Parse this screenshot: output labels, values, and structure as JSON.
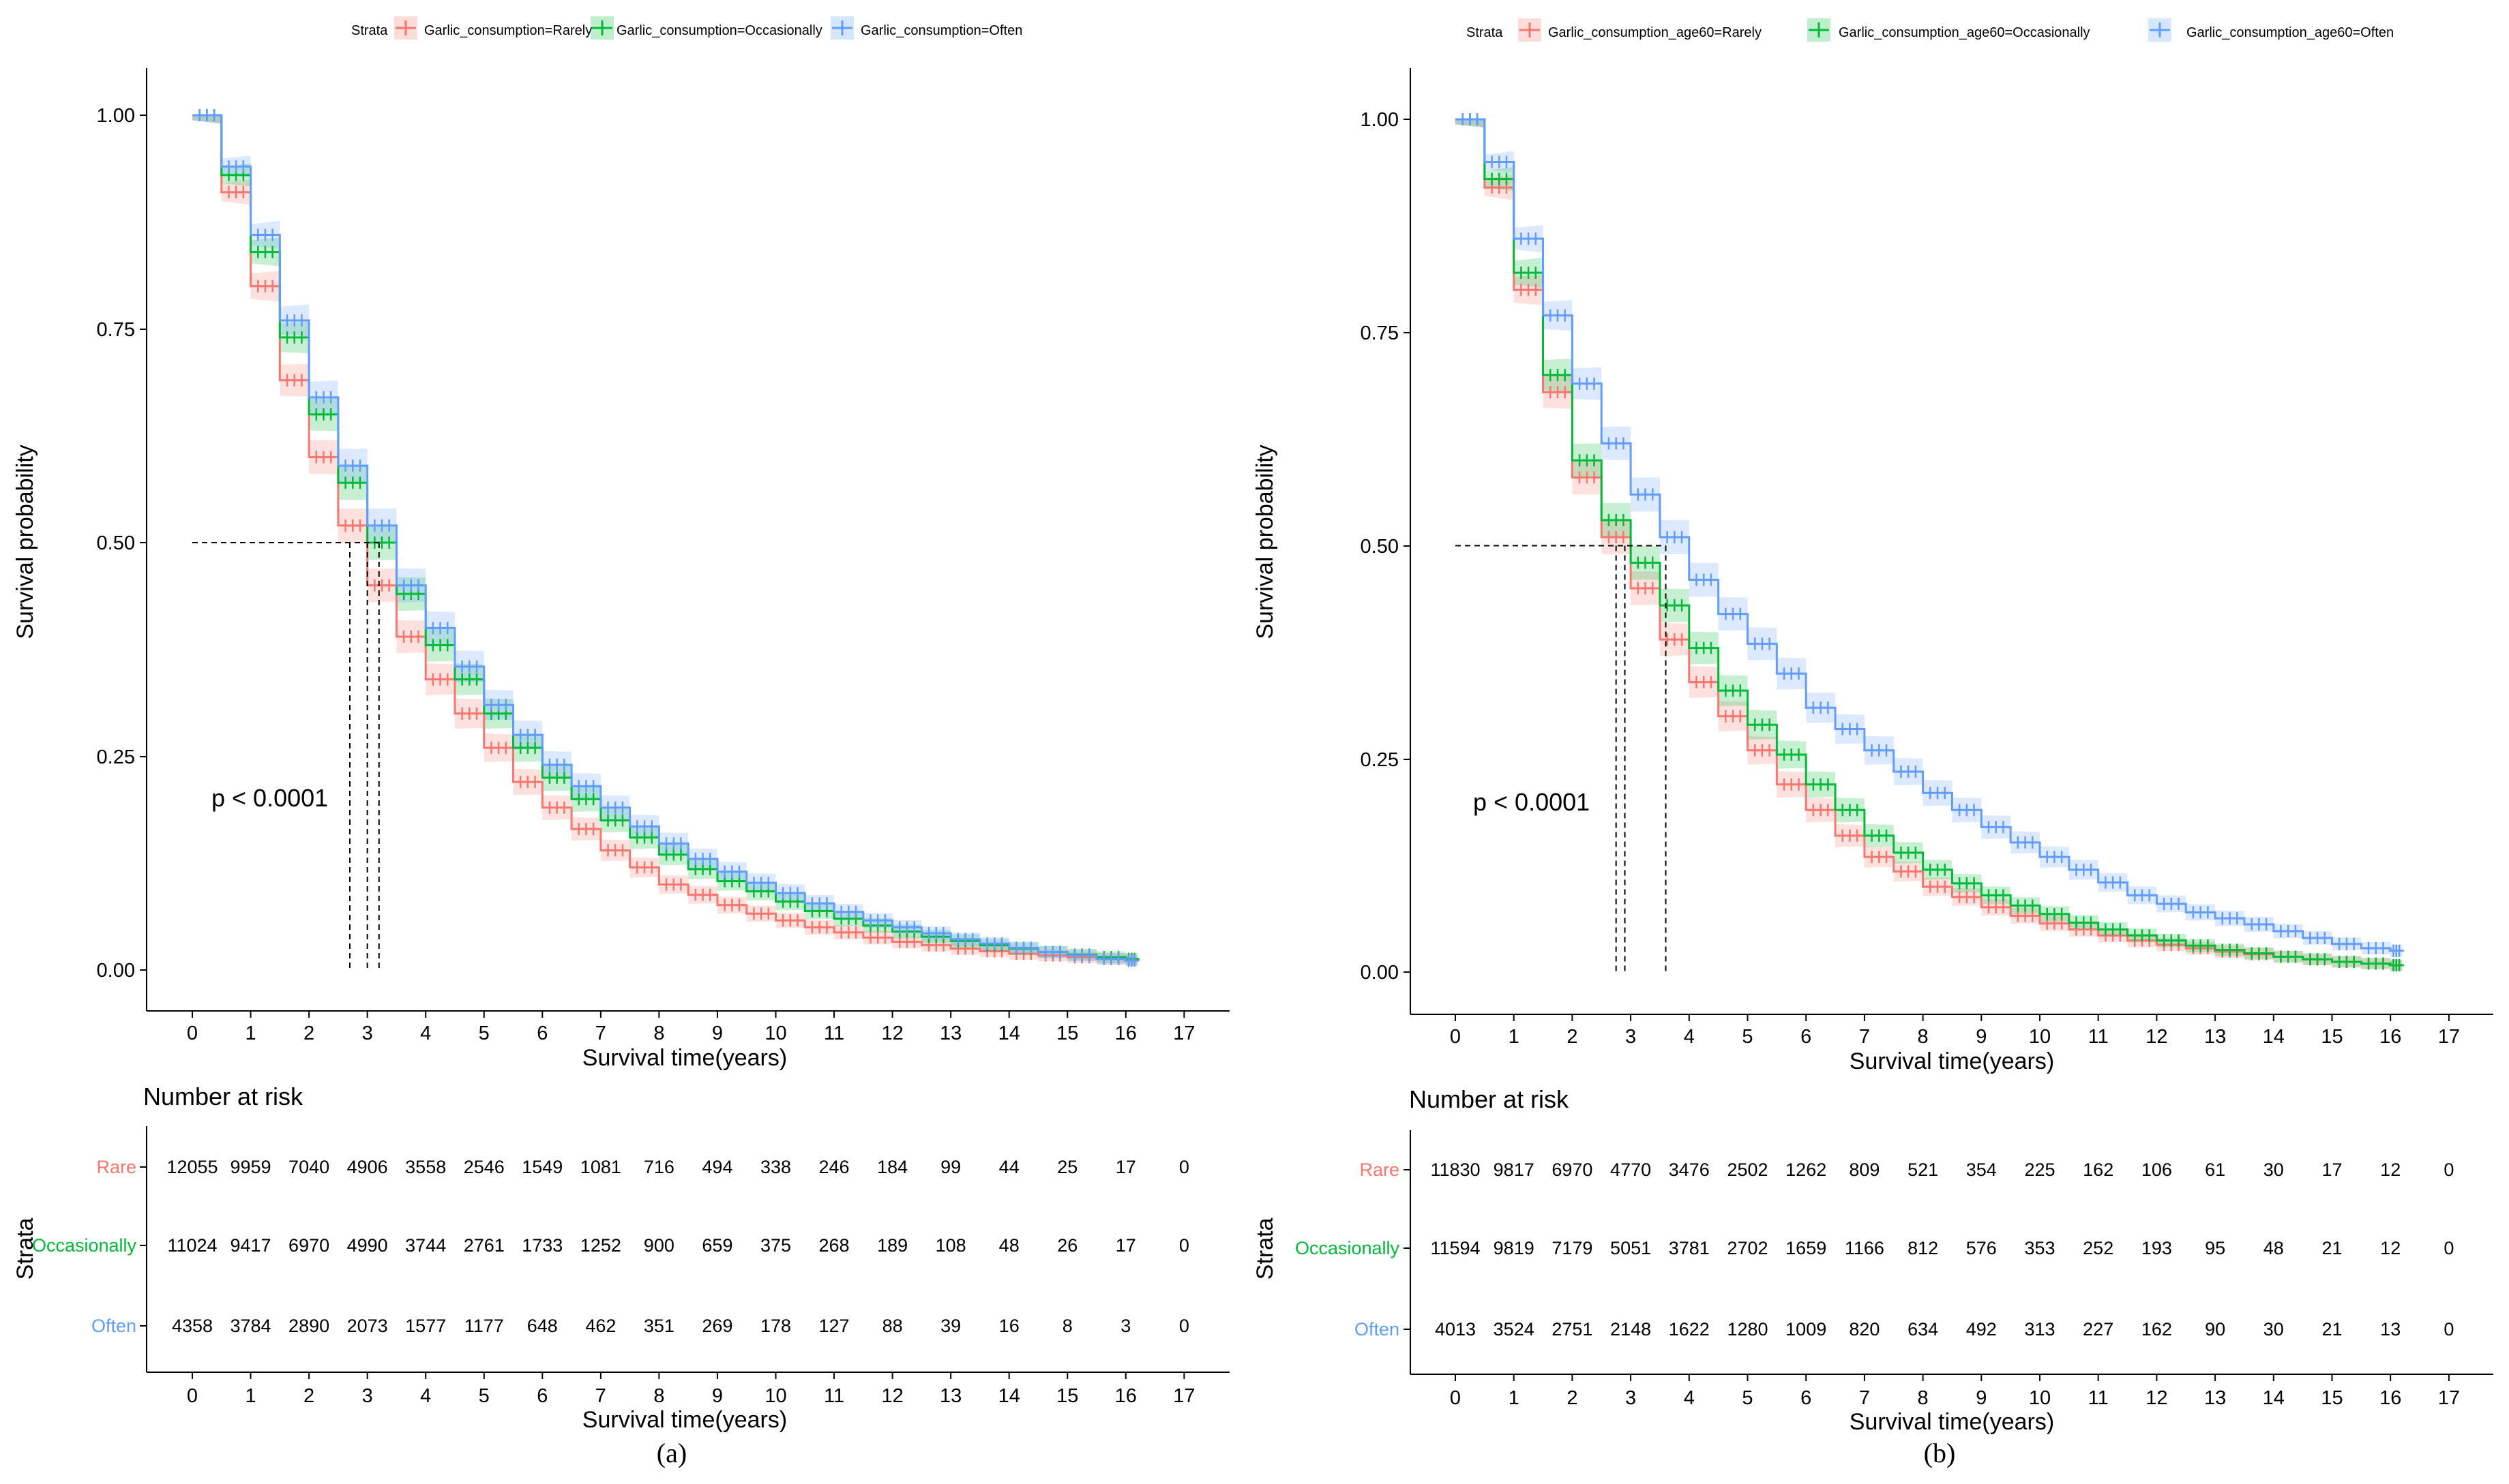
{
  "figure": {
    "panels": [
      {
        "panel_label": "(a)",
        "legend_title": "Strata",
        "y_axis_title": "Survival probability",
        "x_axis_title": "Survival time(years)",
        "p_value": "p < 0.0001",
        "risk_table_title": "Number at risk",
        "risk_table_y_title": "Strata",
        "risk_table_x_title": "Survival time(years)",
        "y_tick_labels": [
          "0.00",
          "0.25",
          "0.50",
          "0.75",
          "1.00"
        ],
        "x_tick_labels": [
          "0",
          "1",
          "2",
          "3",
          "4",
          "5",
          "6",
          "7",
          "8",
          "9",
          "10",
          "11",
          "12",
          "13",
          "14",
          "15",
          "16",
          "17"
        ],
        "legend_entries": [
          "Garlic_consumption=Rarely",
          "Garlic_consumption=Occasionally",
          "Garlic_consumption=Often"
        ],
        "risk_rows": [
          {
            "label": "Rare",
            "color": "#F8766D",
            "values": [
              "12055",
              "9959",
              "7040",
              "4906",
              "3558",
              "2546",
              "1549",
              "1081",
              "716",
              "494",
              "338",
              "246",
              "184",
              "99",
              "44",
              "25",
              "17",
              "0"
            ]
          },
          {
            "label": "Occasionally",
            "color": "#00BA38",
            "values": [
              "11024",
              "9417",
              "6970",
              "4990",
              "3744",
              "2761",
              "1733",
              "1252",
              "900",
              "659",
              "375",
              "268",
              "189",
              "108",
              "48",
              "26",
              "17",
              "0"
            ]
          },
          {
            "label": "Often",
            "color": "#619CFF",
            "values": [
              "4358",
              "3784",
              "2890",
              "2073",
              "1577",
              "1177",
              "648",
              "462",
              "351",
              "269",
              "178",
              "127",
              "88",
              "39",
              "16",
              "8",
              "3",
              "0"
            ]
          }
        ]
      },
      {
        "panel_label": "(b)",
        "legend_title": "Strata",
        "y_axis_title": "Survival probability",
        "x_axis_title": "Survival time(years)",
        "p_value": "p < 0.0001",
        "risk_table_title": "Number at risk",
        "risk_table_y_title": "Strata",
        "risk_table_x_title": "Survival time(years)",
        "y_tick_labels": [
          "0.00",
          "0.25",
          "0.50",
          "0.75",
          "1.00"
        ],
        "x_tick_labels": [
          "0",
          "1",
          "2",
          "3",
          "4",
          "5",
          "6",
          "7",
          "8",
          "9",
          "10",
          "11",
          "12",
          "13",
          "14",
          "15",
          "16",
          "17"
        ],
        "legend_entries": [
          "Garlic_consumption_age60=Rarely",
          "Garlic_consumption_age60=Occasionally",
          "Garlic_consumption_age60=Often"
        ],
        "risk_rows": [
          {
            "label": "Rare",
            "color": "#F8766D",
            "values": [
              "11830",
              "9817",
              "6970",
              "4770",
              "3476",
              "2502",
              "1262",
              "809",
              "521",
              "354",
              "225",
              "162",
              "106",
              "61",
              "30",
              "17",
              "12",
              "0"
            ]
          },
          {
            "label": "Occasionally",
            "color": "#00BA38",
            "values": [
              "11594",
              "9819",
              "7179",
              "5051",
              "3781",
              "2702",
              "1659",
              "1166",
              "812",
              "576",
              "353",
              "252",
              "193",
              "95",
              "48",
              "21",
              "12",
              "0"
            ]
          },
          {
            "label": "Often",
            "color": "#619CFF",
            "values": [
              "4013",
              "3524",
              "2751",
              "2148",
              "1622",
              "1280",
              "1009",
              "820",
              "634",
              "492",
              "313",
              "227",
              "162",
              "90",
              "30",
              "21",
              "13",
              "0"
            ]
          }
        ]
      }
    ]
  },
  "chart_data": [
    {
      "type": "line",
      "subtype": "kaplan-meier",
      "title": "",
      "xlabel": "Survival time(years)",
      "ylabel": "Survival probability",
      "xlim": [
        0,
        17
      ],
      "ylim": [
        0,
        1
      ],
      "grid": false,
      "legend": "top",
      "legend_title": "Strata",
      "annotation": "p < 0.0001",
      "median_survival": [
        2.7,
        3.0,
        3.2
      ],
      "colors": [
        "#F8766D",
        "#00BA38",
        "#619CFF"
      ],
      "series": [
        {
          "name": "Garlic_consumption=Rarely",
          "x": [
            0,
            0.5,
            1,
            1.5,
            2,
            2.5,
            3,
            3.5,
            4,
            4.5,
            5,
            5.5,
            6,
            6.5,
            7,
            7.5,
            8,
            8.5,
            9,
            9.5,
            10,
            10.5,
            11,
            11.5,
            12,
            12.5,
            13,
            13.5,
            14,
            14.5,
            15,
            15.5,
            16,
            16.2
          ],
          "y": [
            1.0,
            0.91,
            0.8,
            0.69,
            0.6,
            0.52,
            0.45,
            0.39,
            0.34,
            0.3,
            0.26,
            0.22,
            0.19,
            0.165,
            0.14,
            0.12,
            0.1,
            0.088,
            0.076,
            0.066,
            0.058,
            0.05,
            0.044,
            0.038,
            0.033,
            0.029,
            0.025,
            0.022,
            0.019,
            0.017,
            0.015,
            0.013,
            0.012,
            0.012
          ]
        },
        {
          "name": "Garlic_consumption=Occasionally",
          "x": [
            0,
            0.5,
            1,
            1.5,
            2,
            2.5,
            3,
            3.5,
            4,
            4.5,
            5,
            5.5,
            6,
            6.5,
            7,
            7.5,
            8,
            8.5,
            9,
            9.5,
            10,
            10.5,
            11,
            11.5,
            12,
            12.5,
            13,
            13.5,
            14,
            14.5,
            15,
            15.5,
            16,
            16.2
          ],
          "y": [
            1.0,
            0.93,
            0.84,
            0.74,
            0.65,
            0.57,
            0.5,
            0.44,
            0.38,
            0.34,
            0.3,
            0.26,
            0.225,
            0.2,
            0.175,
            0.155,
            0.135,
            0.118,
            0.104,
            0.092,
            0.08,
            0.069,
            0.06,
            0.052,
            0.045,
            0.039,
            0.034,
            0.029,
            0.025,
            0.021,
            0.018,
            0.015,
            0.013,
            0.012
          ]
        },
        {
          "name": "Garlic_consumption=Often",
          "x": [
            0,
            0.5,
            1,
            1.5,
            2,
            2.5,
            3,
            3.5,
            4,
            4.5,
            5,
            5.5,
            6,
            6.5,
            7,
            7.5,
            8,
            8.5,
            9,
            9.5,
            10,
            10.5,
            11,
            11.5,
            12,
            12.5,
            13,
            13.5,
            14,
            14.5,
            15,
            15.5,
            16,
            16.2
          ],
          "y": [
            1.0,
            0.94,
            0.86,
            0.76,
            0.67,
            0.59,
            0.52,
            0.45,
            0.4,
            0.355,
            0.31,
            0.275,
            0.24,
            0.215,
            0.19,
            0.168,
            0.148,
            0.13,
            0.115,
            0.102,
            0.09,
            0.078,
            0.068,
            0.058,
            0.05,
            0.043,
            0.036,
            0.031,
            0.026,
            0.021,
            0.017,
            0.013,
            0.011,
            0.01
          ]
        }
      ]
    },
    {
      "type": "line",
      "subtype": "kaplan-meier",
      "title": "",
      "xlabel": "Survival time(years)",
      "ylabel": "Survival probability",
      "xlim": [
        0,
        17
      ],
      "ylim": [
        0,
        1
      ],
      "grid": false,
      "legend": "top",
      "legend_title": "Strata",
      "annotation": "p < 0.0001",
      "median_survival": [
        2.75,
        2.9,
        3.6
      ],
      "colors": [
        "#F8766D",
        "#00BA38",
        "#619CFF"
      ],
      "series": [
        {
          "name": "Garlic_consumption_age60=Rarely",
          "x": [
            0,
            0.5,
            1,
            1.5,
            2,
            2.5,
            3,
            3.5,
            4,
            4.5,
            5,
            5.5,
            6,
            6.5,
            7,
            7.5,
            8,
            8.5,
            9,
            9.5,
            10,
            10.5,
            11,
            11.5,
            12,
            12.5,
            13,
            13.5,
            14,
            14.5,
            15,
            15.5,
            16,
            16.2
          ],
          "y": [
            1.0,
            0.92,
            0.8,
            0.68,
            0.58,
            0.51,
            0.45,
            0.39,
            0.34,
            0.3,
            0.26,
            0.22,
            0.19,
            0.16,
            0.135,
            0.118,
            0.1,
            0.088,
            0.076,
            0.066,
            0.057,
            0.05,
            0.043,
            0.037,
            0.032,
            0.028,
            0.024,
            0.021,
            0.018,
            0.015,
            0.012,
            0.01,
            0.008,
            0.007
          ]
        },
        {
          "name": "Garlic_consumption_age60=Occasionally",
          "x": [
            0,
            0.5,
            1,
            1.5,
            2,
            2.5,
            3,
            3.5,
            4,
            4.5,
            5,
            5.5,
            6,
            6.5,
            7,
            7.5,
            8,
            8.5,
            9,
            9.5,
            10,
            10.5,
            11,
            11.5,
            12,
            12.5,
            13,
            13.5,
            14,
            14.5,
            15,
            15.5,
            16,
            16.2
          ],
          "y": [
            1.0,
            0.93,
            0.82,
            0.7,
            0.6,
            0.53,
            0.48,
            0.43,
            0.38,
            0.33,
            0.29,
            0.255,
            0.22,
            0.19,
            0.16,
            0.14,
            0.12,
            0.104,
            0.09,
            0.078,
            0.068,
            0.058,
            0.05,
            0.043,
            0.037,
            0.031,
            0.026,
            0.022,
            0.018,
            0.015,
            0.012,
            0.01,
            0.008,
            0.007
          ]
        },
        {
          "name": "Garlic_consumption_age60=Often",
          "x": [
            0,
            0.5,
            1,
            1.5,
            2,
            2.5,
            3,
            3.5,
            4,
            4.5,
            5,
            5.5,
            6,
            6.5,
            7,
            7.5,
            8,
            8.5,
            9,
            9.5,
            10,
            10.5,
            11,
            11.5,
            12,
            12.5,
            13,
            13.5,
            14,
            14.5,
            15,
            15.5,
            16,
            16.2
          ],
          "y": [
            1.0,
            0.95,
            0.86,
            0.77,
            0.69,
            0.62,
            0.56,
            0.51,
            0.46,
            0.42,
            0.385,
            0.35,
            0.31,
            0.285,
            0.26,
            0.235,
            0.21,
            0.19,
            0.17,
            0.152,
            0.135,
            0.12,
            0.105,
            0.09,
            0.08,
            0.07,
            0.063,
            0.056,
            0.048,
            0.04,
            0.033,
            0.028,
            0.025,
            0.025
          ]
        }
      ]
    }
  ]
}
